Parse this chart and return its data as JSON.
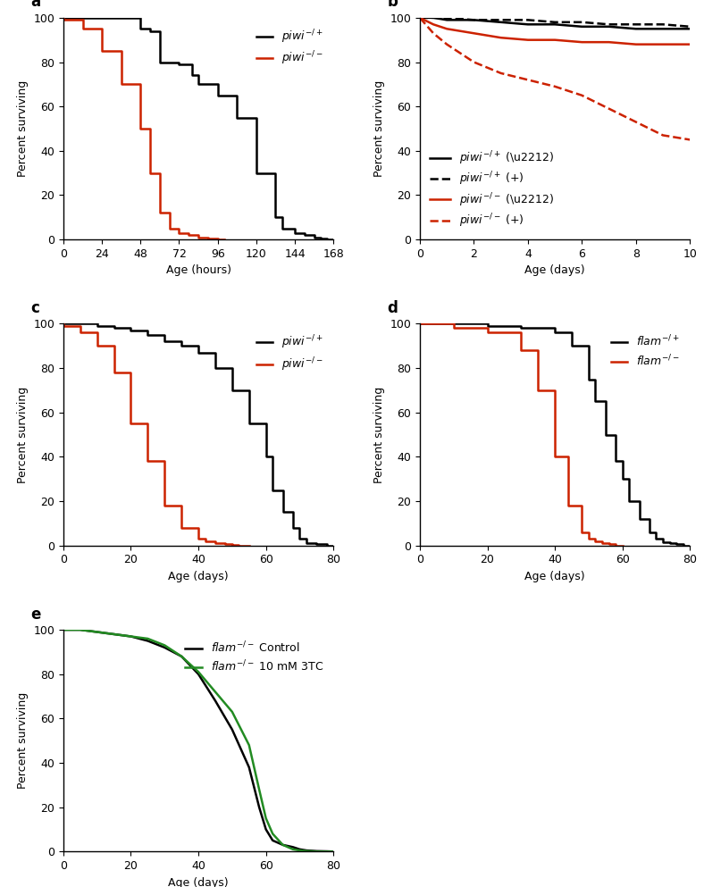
{
  "panel_a": {
    "label": "a",
    "black_x": [
      0,
      0,
      24,
      24,
      48,
      48,
      54,
      54,
      60,
      60,
      72,
      72,
      80,
      80,
      84,
      84,
      96,
      96,
      108,
      108,
      120,
      120,
      132,
      132,
      136,
      136,
      144,
      144,
      150,
      150,
      156,
      156,
      160,
      160,
      164,
      164,
      168
    ],
    "black_y": [
      100,
      100,
      100,
      100,
      100,
      95,
      95,
      94,
      94,
      80,
      80,
      79,
      79,
      74,
      74,
      70,
      70,
      65,
      65,
      55,
      55,
      30,
      30,
      10,
      10,
      5,
      5,
      3,
      3,
      2,
      2,
      1,
      1,
      0.5,
      0.5,
      0,
      0
    ],
    "red_x": [
      0,
      0,
      12,
      12,
      24,
      24,
      36,
      36,
      48,
      48,
      54,
      54,
      60,
      60,
      66,
      66,
      72,
      72,
      78,
      78,
      84,
      84,
      90,
      90,
      96,
      96,
      100
    ],
    "red_y": [
      100,
      99,
      99,
      95,
      95,
      85,
      85,
      70,
      70,
      50,
      50,
      30,
      30,
      12,
      12,
      5,
      5,
      3,
      3,
      2,
      2,
      1,
      1,
      0.5,
      0.5,
      0,
      0
    ],
    "xlabel": "Age (hours)",
    "ylabel": "Percent surviving",
    "xlim": [
      0,
      168
    ],
    "ylim": [
      0,
      100
    ],
    "xticks": [
      0,
      24,
      48,
      72,
      96,
      120,
      144,
      168
    ],
    "yticks": [
      0,
      20,
      40,
      60,
      80,
      100
    ],
    "legend_black": "piwi⁻/+",
    "legend_red": "piwi⁻/⁻"
  },
  "panel_b": {
    "label": "b",
    "black_solid_x": [
      0,
      0.5,
      1,
      2,
      3,
      4,
      5,
      6,
      7,
      8,
      9,
      10
    ],
    "black_solid_y": [
      100,
      100,
      99,
      99,
      98,
      97,
      97,
      96,
      96,
      95,
      95,
      95
    ],
    "black_dash_x": [
      0,
      0.5,
      1,
      2,
      3,
      4,
      5,
      6,
      7,
      8,
      9,
      10
    ],
    "black_dash_y": [
      100,
      100,
      100,
      99,
      99,
      99,
      98,
      98,
      97,
      97,
      97,
      96
    ],
    "red_solid_x": [
      0,
      0.5,
      1,
      2,
      3,
      4,
      5,
      6,
      7,
      8,
      9,
      10
    ],
    "red_solid_y": [
      100,
      97,
      95,
      93,
      91,
      90,
      90,
      89,
      89,
      88,
      88,
      88
    ],
    "red_dash_x": [
      0,
      0.5,
      1,
      2,
      3,
      4,
      5,
      6,
      7,
      8,
      9,
      10
    ],
    "red_dash_y": [
      100,
      93,
      88,
      80,
      75,
      72,
      69,
      65,
      59,
      53,
      47,
      45
    ],
    "xlabel": "Age (days)",
    "ylabel": "Percent surviving",
    "xlim": [
      0,
      10
    ],
    "ylim": [
      0,
      100
    ],
    "xticks": [
      0,
      2,
      4,
      6,
      8,
      10
    ],
    "yticks": [
      0,
      20,
      40,
      60,
      80,
      100
    ],
    "legend_black_solid": "piwi⁻/+ (−)",
    "legend_black_dash": "piwi⁻/+ (+)",
    "legend_red_solid": "piwi⁻/⁻ (−)",
    "legend_red_dash": "piwi⁻/⁻ (+)"
  },
  "panel_c": {
    "label": "c",
    "black_x": [
      0,
      0,
      10,
      10,
      15,
      15,
      20,
      20,
      25,
      25,
      30,
      30,
      35,
      35,
      40,
      40,
      45,
      45,
      50,
      50,
      55,
      55,
      60,
      60,
      62,
      62,
      65,
      65,
      68,
      68,
      70,
      70,
      72,
      72,
      75,
      75,
      78,
      78,
      80
    ],
    "black_y": [
      100,
      100,
      100,
      99,
      99,
      98,
      98,
      97,
      97,
      95,
      95,
      92,
      92,
      90,
      90,
      87,
      87,
      80,
      80,
      70,
      70,
      55,
      55,
      40,
      40,
      25,
      25,
      15,
      15,
      8,
      8,
      3,
      3,
      1,
      1,
      0.5,
      0.5,
      0,
      0
    ],
    "red_x": [
      0,
      0,
      5,
      5,
      10,
      10,
      15,
      15,
      20,
      20,
      25,
      25,
      30,
      30,
      35,
      35,
      40,
      40,
      42,
      42,
      45,
      45,
      48,
      48,
      50,
      50,
      52,
      52,
      55
    ],
    "red_y": [
      100,
      99,
      99,
      96,
      96,
      90,
      90,
      78,
      78,
      55,
      55,
      38,
      38,
      18,
      18,
      8,
      8,
      3,
      3,
      2,
      2,
      1,
      1,
      0.5,
      0.5,
      0.2,
      0.2,
      0,
      0
    ],
    "xlabel": "Age (days)",
    "ylabel": "Percent surviving",
    "xlim": [
      0,
      80
    ],
    "ylim": [
      0,
      100
    ],
    "xticks": [
      0,
      20,
      40,
      60,
      80
    ],
    "yticks": [
      0,
      20,
      40,
      60,
      80,
      100
    ],
    "legend_black": "piwi⁻/+",
    "legend_red": "piwi⁻/⁻"
  },
  "panel_d": {
    "label": "d",
    "black_x": [
      0,
      0,
      10,
      10,
      20,
      20,
      30,
      30,
      40,
      40,
      45,
      45,
      50,
      50,
      52,
      52,
      55,
      55,
      58,
      58,
      60,
      60,
      62,
      62,
      65,
      65,
      68,
      68,
      70,
      70,
      72,
      72,
      74,
      74,
      76,
      76,
      78,
      78,
      80
    ],
    "black_y": [
      100,
      100,
      100,
      100,
      100,
      99,
      99,
      98,
      98,
      96,
      96,
      90,
      90,
      75,
      75,
      65,
      65,
      50,
      50,
      38,
      38,
      30,
      30,
      20,
      20,
      12,
      12,
      6,
      6,
      3,
      3,
      1.5,
      1.5,
      1,
      1,
      0.5,
      0.5,
      0,
      0
    ],
    "red_x": [
      0,
      0,
      10,
      10,
      20,
      20,
      30,
      30,
      35,
      35,
      40,
      40,
      44,
      44,
      48,
      48,
      50,
      50,
      52,
      52,
      54,
      54,
      56,
      56,
      58,
      58,
      60
    ],
    "red_y": [
      100,
      100,
      100,
      98,
      98,
      96,
      96,
      88,
      88,
      70,
      70,
      40,
      40,
      18,
      18,
      6,
      6,
      3,
      3,
      2,
      2,
      1,
      1,
      0.5,
      0.5,
      0,
      0
    ],
    "xlabel": "Age (days)",
    "ylabel": "Percent surviving",
    "xlim": [
      0,
      80
    ],
    "ylim": [
      0,
      100
    ],
    "xticks": [
      0,
      20,
      40,
      60,
      80
    ],
    "yticks": [
      0,
      20,
      40,
      60,
      80,
      100
    ],
    "legend_black": "flam⁻/+",
    "legend_red": "flam⁻/⁻"
  },
  "panel_e": {
    "label": "e",
    "black_x": [
      0,
      0,
      5,
      5,
      10,
      10,
      15,
      15,
      20,
      20,
      25,
      25,
      30,
      30,
      35,
      35,
      40,
      40,
      45,
      45,
      50,
      50,
      55,
      55,
      58,
      58,
      60,
      60,
      62,
      62,
      65,
      65,
      68,
      68,
      70,
      70,
      72,
      72,
      75,
      75,
      78,
      78,
      80,
      80,
      82
    ],
    "black_y": [
      100,
      100,
      100,
      100,
      99,
      99,
      98,
      98,
      97,
      97,
      95,
      95,
      92,
      92,
      88,
      88,
      80,
      80,
      68,
      68,
      55,
      55,
      38,
      38,
      20,
      20,
      10,
      10,
      5,
      5,
      3,
      3,
      2,
      2,
      1,
      1,
      0.5,
      0.5,
      0.2,
      0.2,
      0.1,
      0.1,
      0,
      0,
      0
    ],
    "green_x": [
      0,
      0,
      5,
      5,
      10,
      10,
      15,
      15,
      20,
      20,
      25,
      25,
      30,
      30,
      35,
      35,
      40,
      40,
      45,
      45,
      50,
      50,
      55,
      55,
      58,
      58,
      60,
      60,
      62,
      62,
      65,
      65,
      68,
      68,
      70,
      70,
      72,
      72,
      75,
      75,
      78,
      78,
      80,
      80,
      82
    ],
    "green_y": [
      100,
      100,
      100,
      100,
      99,
      99,
      98,
      98,
      97,
      97,
      96,
      96,
      93,
      93,
      88,
      88,
      81,
      81,
      72,
      72,
      63,
      63,
      48,
      48,
      28,
      28,
      15,
      15,
      8,
      8,
      3,
      3,
      1,
      1,
      0.5,
      0.5,
      0.2,
      0.2,
      0,
      0,
      0,
      0,
      0,
      0,
      0
    ],
    "xlabel": "Age (days)",
    "ylabel": "Percent surviving",
    "xlim": [
      0,
      80
    ],
    "ylim": [
      0,
      100
    ],
    "xticks": [
      0,
      20,
      40,
      60,
      80
    ],
    "yticks": [
      0,
      20,
      40,
      60,
      80,
      100
    ],
    "legend_black": "flam⁻/⁻ Control",
    "legend_green": "flam⁻/⁻ 10 mM 3TC"
  },
  "colors": {
    "black": "#000000",
    "red": "#cc2200",
    "green": "#228B22"
  },
  "line_width": 1.8,
  "font_size": 9,
  "label_font_size": 12,
  "axis_label_size": 9
}
